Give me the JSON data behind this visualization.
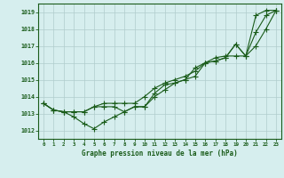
{
  "xlabel": "Graphe pression niveau de la mer (hPa)",
  "background_color": "#d6eeee",
  "grid_color": "#b0cccc",
  "line_color": "#1a5c1a",
  "x_values": [
    0,
    1,
    2,
    3,
    4,
    5,
    6,
    7,
    8,
    9,
    10,
    11,
    12,
    13,
    14,
    15,
    16,
    17,
    18,
    19,
    20,
    21,
    22,
    23
  ],
  "series1": [
    1013.6,
    1013.2,
    1013.1,
    1012.8,
    1012.4,
    1012.1,
    1012.5,
    1012.8,
    1013.1,
    1013.4,
    1013.4,
    1014.2,
    1014.7,
    1014.8,
    1015.0,
    1015.7,
    1016.0,
    1016.1,
    1016.3,
    1017.1,
    1016.4,
    1018.8,
    1019.1,
    1019.1
  ],
  "series2": [
    1013.6,
    1013.2,
    1013.1,
    1013.1,
    1013.1,
    1013.4,
    1013.4,
    1013.4,
    1013.1,
    1013.4,
    1013.4,
    1014.0,
    1014.4,
    1014.8,
    1015.0,
    1015.2,
    1016.0,
    1016.1,
    1016.3,
    1017.1,
    1016.4,
    1017.8,
    1018.8,
    1019.1
  ],
  "series3": [
    1013.6,
    1013.2,
    1013.1,
    1013.1,
    1013.1,
    1013.4,
    1013.6,
    1013.6,
    1013.6,
    1013.6,
    1014.0,
    1014.5,
    1014.8,
    1015.0,
    1015.2,
    1015.5,
    1016.0,
    1016.3,
    1016.4,
    1016.4,
    1016.4,
    1017.0,
    1018.0,
    1019.1
  ],
  "ylim": [
    1011.5,
    1019.5
  ],
  "yticks": [
    1012,
    1013,
    1014,
    1015,
    1016,
    1017,
    1018,
    1019
  ],
  "xlim": [
    -0.5,
    23.5
  ],
  "xticks": [
    0,
    1,
    2,
    3,
    4,
    5,
    6,
    7,
    8,
    9,
    10,
    11,
    12,
    13,
    14,
    15,
    16,
    17,
    18,
    19,
    20,
    21,
    22,
    23
  ]
}
